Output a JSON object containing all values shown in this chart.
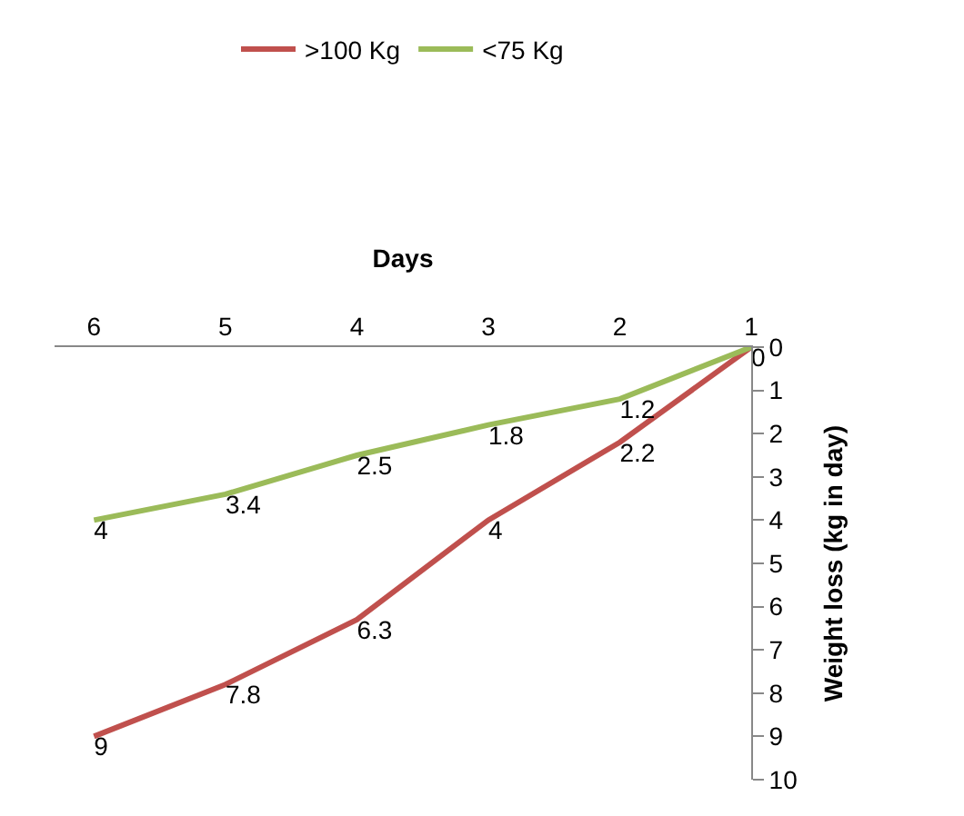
{
  "chart_data": {
    "type": "line",
    "xlabel": "Days",
    "ylabel": "Weight loss (kg in day)",
    "categories": [
      "6",
      "5",
      "4",
      "3",
      "2",
      "1"
    ],
    "series": [
      {
        "name": ">100 Kg",
        "color": "#c0504d",
        "values": [
          9,
          7.8,
          6.3,
          4,
          2.2,
          0
        ],
        "value_labels": [
          "9",
          "7.8",
          "6.3",
          "4",
          "2.2",
          "0"
        ]
      },
      {
        "name": "<75 Kg",
        "color": "#9bbb59",
        "values": [
          4,
          3.4,
          2.5,
          1.8,
          1.2,
          0
        ],
        "value_labels": [
          "4",
          "3.4",
          "2.5",
          "1.8",
          "1.2",
          null
        ]
      }
    ],
    "ylim": [
      10,
      0
    ],
    "yticks": [
      0,
      1,
      2,
      3,
      4,
      5,
      6,
      7,
      8,
      9,
      10
    ],
    "legend": "top",
    "marker": "none",
    "line_style": "solid"
  }
}
